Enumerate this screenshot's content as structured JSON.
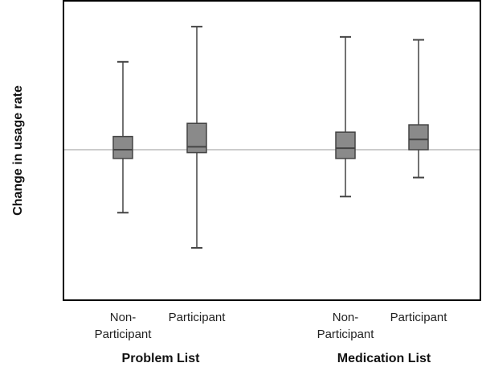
{
  "chart_data": {
    "type": "boxplot",
    "title": "",
    "ylabel": "Change in usage rate",
    "xlabel": "",
    "ylim": [
      -1.0,
      1.0
    ],
    "baseline": 0,
    "grid": false,
    "groups": [
      {
        "name": "Problem List",
        "categories": [
          {
            "label_line1": "Non-",
            "label_line2": "Participant",
            "min": -0.43,
            "q1": -0.06,
            "median": 0.0,
            "q3": 0.09,
            "max": 0.6
          },
          {
            "label_line1": "Participant",
            "label_line2": "",
            "min": -0.67,
            "q1": -0.02,
            "median": 0.02,
            "q3": 0.18,
            "max": 0.84
          }
        ]
      },
      {
        "name": "Medication List",
        "categories": [
          {
            "label_line1": "Non-",
            "label_line2": "Participant",
            "min": -0.32,
            "q1": -0.06,
            "median": 0.01,
            "q3": 0.12,
            "max": 0.77
          },
          {
            "label_line1": "Participant",
            "label_line2": "",
            "min": -0.19,
            "q1": 0.0,
            "median": 0.07,
            "q3": 0.17,
            "max": 0.75
          }
        ]
      }
    ],
    "colors": {
      "box_fill": "#8a8a8a",
      "box_stroke": "#444444",
      "whisker": "#444444",
      "baseline": "#bbbbbb",
      "frame": "#000000"
    }
  }
}
